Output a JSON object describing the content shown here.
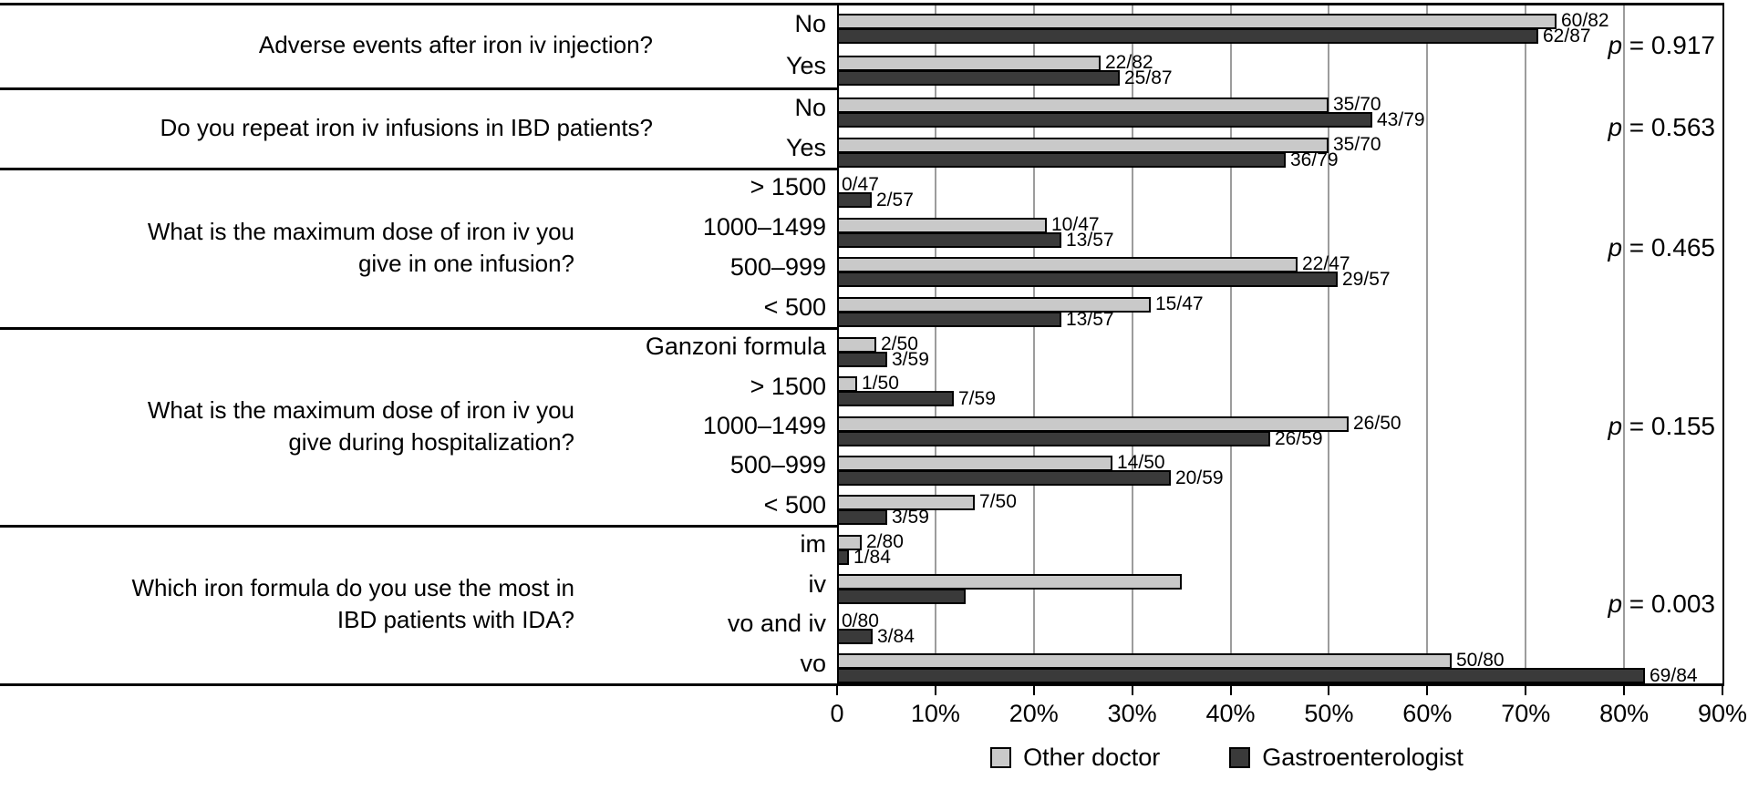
{
  "chart_data": {
    "type": "bar",
    "orientation": "horizontal",
    "title": "",
    "x_axis": {
      "min": 0,
      "max": 90,
      "unit": "%",
      "tick_labels": [
        "0",
        "10%",
        "20%",
        "30%",
        "40%",
        "50%",
        "60%",
        "70%",
        "80%",
        "90%"
      ],
      "grid": true
    },
    "legend": [
      {
        "name": "Other doctor",
        "color": "#c9c9c9"
      },
      {
        "name": "Gastroenterologist",
        "color": "#3a3a3a"
      }
    ],
    "colors": {
      "other_doctor_fill": "#c9c9c9",
      "gastroenterologist_fill": "#3a3a3a",
      "bar_border": "#000000",
      "gridline": "#9c9c9c"
    },
    "sections": [
      {
        "question_lines": [
          "Adverse events after iron iv injection?"
        ],
        "p_label": "p = 0.917",
        "rows": [
          {
            "category": "No",
            "other": {
              "label": "60/82",
              "pct": 73.17
            },
            "gastro": {
              "label": "62/87",
              "pct": 71.26
            }
          },
          {
            "category": "Yes",
            "other": {
              "label": "22/82",
              "pct": 26.83
            },
            "gastro": {
              "label": "25/87",
              "pct": 28.74
            }
          }
        ]
      },
      {
        "question_lines": [
          "Do you repeat iron iv infusions in IBD patients?"
        ],
        "p_label": "p = 0.563",
        "rows": [
          {
            "category": "No",
            "other": {
              "label": "35/70",
              "pct": 50.0
            },
            "gastro": {
              "label": "43/79",
              "pct": 54.43
            }
          },
          {
            "category": "Yes",
            "other": {
              "label": "35/70",
              "pct": 50.0
            },
            "gastro": {
              "label": "36/79",
              "pct": 45.57
            }
          }
        ]
      },
      {
        "question_lines": [
          "What is the maximum dose of iron iv you",
          "give in one infusion?"
        ],
        "p_label": "p = 0.465",
        "rows": [
          {
            "category": "> 1500",
            "other": {
              "label": "0/47",
              "pct": 0.0
            },
            "gastro": {
              "label": "2/57",
              "pct": 3.51
            }
          },
          {
            "category": "1000–1499",
            "other": {
              "label": "10/47",
              "pct": 21.28
            },
            "gastro": {
              "label": "13/57",
              "pct": 22.81
            }
          },
          {
            "category": "500–999",
            "other": {
              "label": "22/47",
              "pct": 46.81
            },
            "gastro": {
              "label": "29/57",
              "pct": 50.88
            }
          },
          {
            "category": "< 500",
            "other": {
              "label": "15/47",
              "pct": 31.91
            },
            "gastro": {
              "label": "13/57",
              "pct": 22.81
            }
          }
        ]
      },
      {
        "question_lines": [
          "What is the maximum dose of iron iv you",
          "give during hospitalization?"
        ],
        "p_label": "p = 0.155",
        "rows": [
          {
            "category": "Ganzoni formula",
            "other": {
              "label": "2/50",
              "pct": 4.0
            },
            "gastro": {
              "label": "3/59",
              "pct": 5.08
            }
          },
          {
            "category": "> 1500",
            "other": {
              "label": "1/50",
              "pct": 2.0
            },
            "gastro": {
              "label": "7/59",
              "pct": 11.86
            }
          },
          {
            "category": "1000–1499",
            "other": {
              "label": "26/50",
              "pct": 52.0
            },
            "gastro": {
              "label": "26/59",
              "pct": 44.07
            }
          },
          {
            "category": "500–999",
            "other": {
              "label": "14/50",
              "pct": 28.0
            },
            "gastro": {
              "label": "20/59",
              "pct": 33.9
            }
          },
          {
            "category": "< 500",
            "other": {
              "label": "7/50",
              "pct": 14.0
            },
            "gastro": {
              "label": "3/59",
              "pct": 5.08
            }
          }
        ]
      },
      {
        "question_lines": [
          "Which iron formula do you use the most in",
          "IBD patients with IDA?"
        ],
        "p_label": "p = 0.003",
        "rows": [
          {
            "category": "im",
            "other": {
              "label": "2/80",
              "pct": 2.5
            },
            "gastro": {
              "label": "1/84",
              "pct": 1.19
            }
          },
          {
            "category": "iv",
            "other": {
              "label": "",
              "pct": 35.0
            },
            "gastro": {
              "label": "",
              "pct": 13.1
            }
          },
          {
            "category": "vo and iv",
            "other": {
              "label": "0/80",
              "pct": 0.0
            },
            "gastro": {
              "label": "3/84",
              "pct": 3.57
            }
          },
          {
            "category": "vo",
            "other": {
              "label": "50/80",
              "pct": 62.5
            },
            "gastro": {
              "label": "69/84",
              "pct": 82.14
            }
          }
        ]
      }
    ]
  }
}
